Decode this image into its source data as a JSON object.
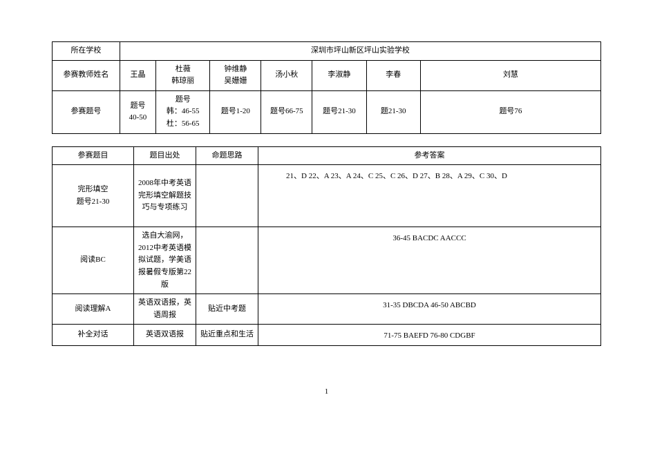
{
  "table1": {
    "row1": {
      "label": "所在学校",
      "value": "深圳市坪山新区坪山实验学校"
    },
    "row2": {
      "label": "参赛教师姓名",
      "c1": "王晶",
      "c2": "杜薇\n韩琼丽",
      "c3": "钟维静\n吴姗姗",
      "c4": "汤小秋",
      "c5": "李淑静",
      "c6": "李春",
      "c7": "刘慧"
    },
    "row3": {
      "label": "参赛题号",
      "c1": "题号\n40-50",
      "c2": "题号\n韩：46-55\n杜：56-65",
      "c3": "题号1-20",
      "c4": "题号66-75",
      "c5": "题号21-30",
      "c6": "题21-30",
      "c7": "题号76"
    }
  },
  "table2": {
    "header": {
      "a": "参赛题目",
      "b": "题目出处",
      "c": "命题思路",
      "d": "参考答案"
    },
    "rows": [
      {
        "a": "完形填空\n题号21-30",
        "b": "2008年中考英语完形填空解题技巧与专项练习",
        "c": "",
        "d": "21、D  22、A  23、A  24、C  25、C  26、D  27、B  28、A  29、C  30、D"
      },
      {
        "a": "阅读BC",
        "b": "选自大渝网，2012中考英语模拟试题，学美语报暑假专版第22版",
        "c": "",
        "d": "36-45 BACDC  AACCC"
      },
      {
        "a": "阅读理解A",
        "b": "英语双语报，英语周报",
        "c": "贴近中考题",
        "d": "31-35 DBCDA 46-50 ABCBD"
      },
      {
        "a": "补全对话",
        "b": "英语双语报",
        "c": "贴近重点和生活",
        "d": "71-75 BAEFD 76-80 CDGBF"
      }
    ]
  },
  "page_number": "1"
}
